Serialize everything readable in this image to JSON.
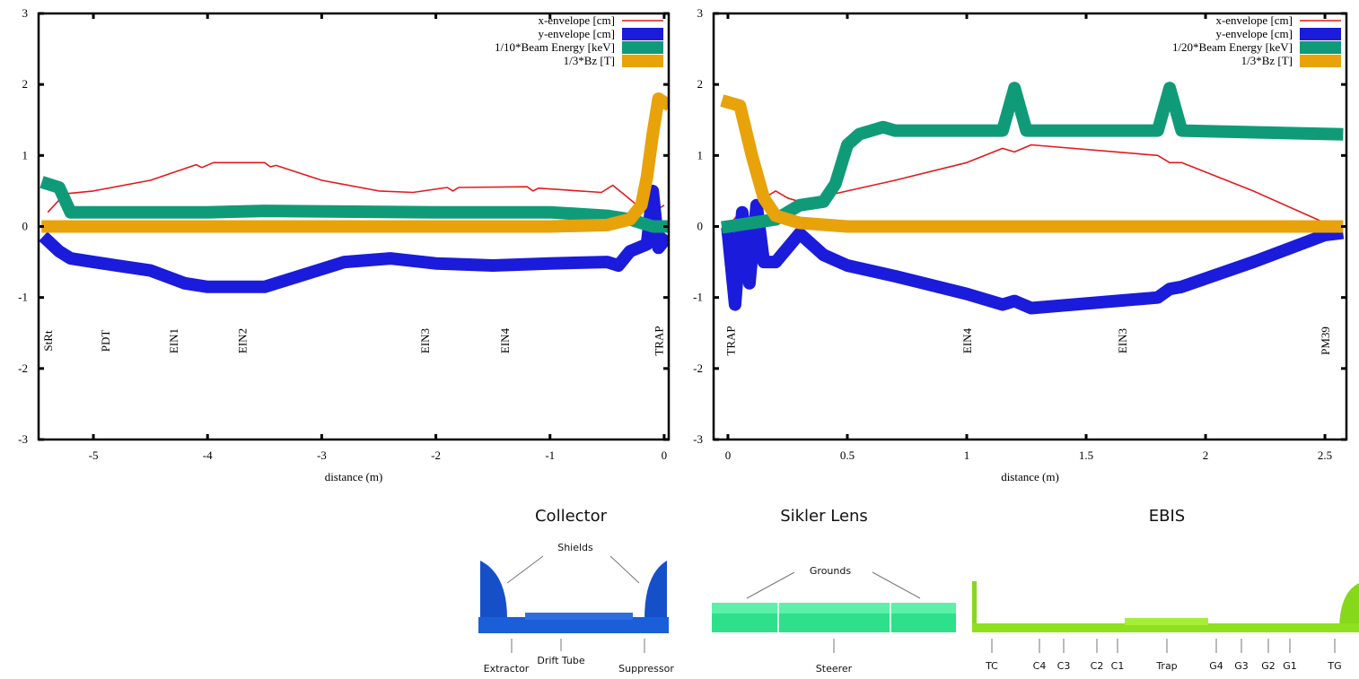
{
  "chart_data": [
    {
      "type": "line",
      "xlabel": "distance (m)",
      "xlim": [
        -5.48,
        0.04
      ],
      "xticks": [
        -5,
        -4,
        -3,
        -2,
        -1,
        0
      ],
      "ylim": [
        -3,
        3
      ],
      "yticks": [
        -3,
        -2,
        -1,
        0,
        1,
        2,
        3
      ],
      "legend": "upper right",
      "series": [
        {
          "name": "x-envelope [cm]",
          "color": "#e31a1c",
          "x": [
            -5.4,
            -5.25,
            -5.0,
            -4.5,
            -4.1,
            -4.05,
            -3.95,
            -3.5,
            -3.45,
            -3.4,
            -3.0,
            -2.5,
            -2.2,
            -1.9,
            -1.85,
            -1.8,
            -1.2,
            -1.15,
            -1.1,
            -0.55,
            -0.45,
            -0.35,
            -0.2,
            -0.1,
            0
          ],
          "values": [
            0.2,
            0.46,
            0.5,
            0.65,
            0.87,
            0.83,
            0.9,
            0.9,
            0.84,
            0.86,
            0.65,
            0.5,
            0.48,
            0.55,
            0.5,
            0.55,
            0.56,
            0.5,
            0.54,
            0.48,
            0.58,
            0.45,
            0.25,
            0.2,
            0.3
          ]
        },
        {
          "name": "y-envelope [cm]",
          "color": "#1b1bdc",
          "x": [
            -5.4,
            -5.3,
            -5.2,
            -5.0,
            -4.5,
            -4.2,
            -4.0,
            -3.5,
            -3.2,
            -2.8,
            -2.4,
            -2.0,
            -1.5,
            -1.0,
            -0.5,
            -0.4,
            -0.3,
            -0.15,
            -0.1,
            -0.05,
            0
          ],
          "values": [
            -0.2,
            -0.35,
            -0.45,
            -0.5,
            -0.62,
            -0.8,
            -0.85,
            -0.85,
            -0.7,
            -0.5,
            -0.45,
            -0.52,
            -0.55,
            -0.52,
            -0.5,
            -0.55,
            -0.35,
            -0.25,
            0.5,
            -0.3,
            -0.2
          ]
        },
        {
          "name": "1/10*Beam Energy  [keV]",
          "color": "#109b78",
          "x": [
            -5.4,
            -5.3,
            -5.2,
            -4.5,
            -4.0,
            -3.5,
            -2.0,
            -1.0,
            -0.5,
            -0.3,
            -0.1,
            0
          ],
          "values": [
            0.6,
            0.55,
            0.2,
            0.2,
            0.2,
            0.22,
            0.2,
            0.2,
            0.15,
            0.1,
            0.0,
            0.0
          ]
        },
        {
          "name": "1/3*Bz [T]",
          "color": "#e8a20a",
          "x": [
            -5.4,
            -1.0,
            -0.5,
            -0.3,
            -0.2,
            -0.15,
            -0.1,
            -0.05,
            0
          ],
          "values": [
            0,
            0,
            0.02,
            0.1,
            0.3,
            0.7,
            1.3,
            1.8,
            1.75
          ]
        }
      ],
      "annotations": [
        {
          "text": "StRt",
          "x": -5.4
        },
        {
          "text": "PDT",
          "x": -4.9
        },
        {
          "text": "EIN1",
          "x": -4.3
        },
        {
          "text": "EIN2",
          "x": -3.7
        },
        {
          "text": "EIN3",
          "x": -2.1
        },
        {
          "text": "EIN4",
          "x": -1.4
        },
        {
          "text": "TRAP",
          "x": -0.05
        }
      ]
    },
    {
      "type": "line",
      "xlabel": "distance (m)",
      "xlim": [
        -0.06,
        2.59
      ],
      "xticks": [
        0,
        0.5,
        1,
        1.5,
        2,
        2.5
      ],
      "ylim": [
        -3,
        3
      ],
      "yticks": [
        -3,
        -2,
        -1,
        0,
        1,
        2,
        3
      ],
      "legend": "upper right",
      "series": [
        {
          "name": "x-envelope [cm]",
          "color": "#e31a1c",
          "x": [
            0,
            0.05,
            0.1,
            0.15,
            0.2,
            0.25,
            0.3,
            0.5,
            0.7,
            1.0,
            1.15,
            1.2,
            1.27,
            1.8,
            1.85,
            1.9,
            2.2,
            2.5
          ],
          "values": [
            0,
            0.2,
            0.1,
            0.4,
            0.5,
            0.4,
            0.35,
            0.5,
            0.65,
            0.9,
            1.1,
            1.05,
            1.15,
            1.0,
            0.9,
            0.9,
            0.5,
            0.05
          ]
        },
        {
          "name": "y-envelope [cm]",
          "color": "#1b1bdc",
          "x": [
            0,
            0.03,
            0.06,
            0.09,
            0.12,
            0.15,
            0.2,
            0.3,
            0.4,
            0.5,
            0.7,
            1.0,
            1.15,
            1.2,
            1.27,
            1.8,
            1.85,
            1.9,
            2.2,
            2.5,
            2.55
          ],
          "values": [
            -0.1,
            -1.1,
            0.2,
            -0.8,
            0.3,
            -0.5,
            -0.5,
            -0.1,
            -0.4,
            -0.55,
            -0.7,
            -0.95,
            -1.1,
            -1.05,
            -1.15,
            -1.0,
            -0.88,
            -0.85,
            -0.5,
            -0.12,
            -0.1
          ]
        },
        {
          "name": "1/20*Beam Energy  [keV]",
          "color": "#109b78",
          "x": [
            0,
            0.2,
            0.3,
            0.4,
            0.45,
            0.5,
            0.55,
            0.65,
            0.7,
            1.15,
            1.2,
            1.25,
            1.8,
            1.85,
            1.9,
            2.55
          ],
          "values": [
            0,
            0.1,
            0.3,
            0.35,
            0.6,
            1.15,
            1.3,
            1.4,
            1.35,
            1.35,
            1.95,
            1.35,
            1.35,
            1.95,
            1.35,
            1.3
          ]
        },
        {
          "name": "1/3*Bz [T]",
          "color": "#e8a20a",
          "x": [
            0,
            0.05,
            0.1,
            0.15,
            0.2,
            0.3,
            0.5,
            2.55
          ],
          "values": [
            1.75,
            1.7,
            1.0,
            0.4,
            0.15,
            0.05,
            0,
            0
          ]
        }
      ],
      "annotations": [
        {
          "text": "TRAP",
          "x": 0.01
        },
        {
          "text": "EIN4",
          "x": 1.0
        },
        {
          "text": "EIN3",
          "x": 1.65
        },
        {
          "text": "PM39",
          "x": 2.5
        }
      ]
    }
  ],
  "diagrams": [
    {
      "title": "Collector",
      "callouts": [
        "Shields"
      ],
      "labels": [
        "Extractor",
        "Drift Tube",
        "Suppressor"
      ]
    },
    {
      "title": "Sikler Lens",
      "callouts": [
        "Grounds"
      ],
      "labels": [
        "Steerer"
      ]
    },
    {
      "title": "EBIS",
      "labels": [
        "TC",
        "C4",
        "C3",
        "C2",
        "C1",
        "Trap",
        "G4",
        "G3",
        "G2",
        "G1",
        "TG"
      ]
    }
  ]
}
